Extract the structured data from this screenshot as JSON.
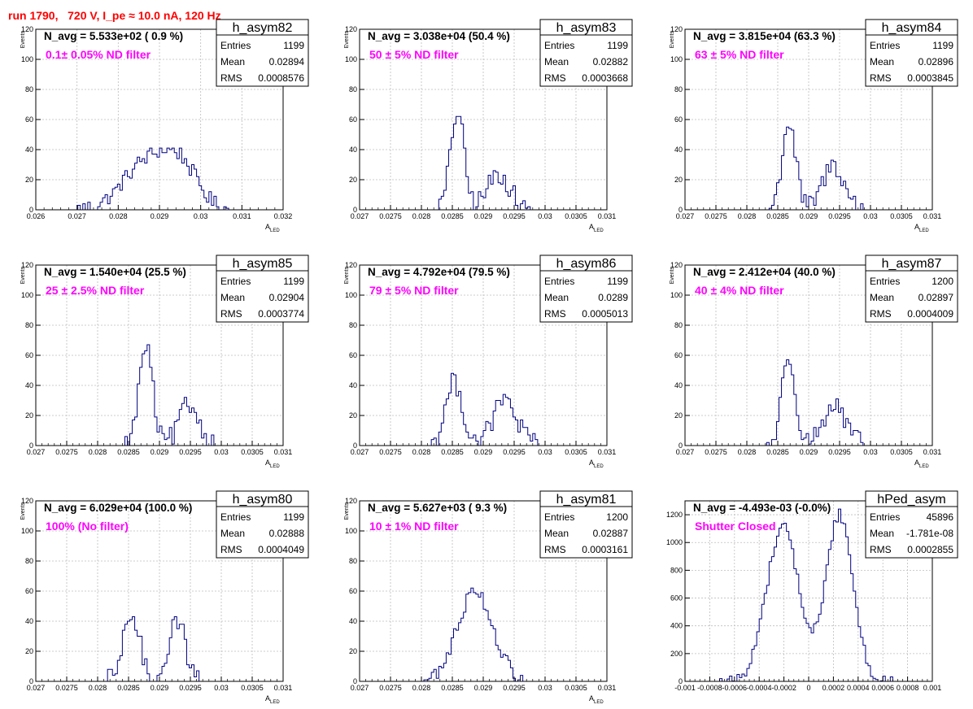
{
  "run_title": "run 1790,   720 V, I_pe ≈ 10.0 nA, 120 Hz",
  "colors": {
    "title": "#ff0000",
    "filter_label": "#ff00ff",
    "histogram": "#000080",
    "grid": "#bdbdbd"
  },
  "chart_data": [
    {
      "type": "histogram",
      "name": "h_asym82",
      "navg": "N_avg = 5.533e+02 ( 0.9 %)",
      "filter": "0.1± 0.05% ND filter",
      "ylabel": "Events",
      "xlabel": "A",
      "xlabel_sub": "LED",
      "stats": [
        [
          "Entries",
          "1199"
        ],
        [
          "Mean",
          "0.02894"
        ],
        [
          "RMS",
          "0.0008576"
        ]
      ],
      "xlim": [
        0.026,
        0.032
      ],
      "ylim": [
        0,
        120
      ],
      "xticks": [
        "0.026",
        "0.027",
        "0.028",
        "0.029",
        "0.03",
        "0.031",
        "0.032"
      ],
      "yticks": [
        "0",
        "20",
        "40",
        "60",
        "80",
        "100",
        "120"
      ],
      "grid": true,
      "bin_width": 6e-05,
      "peaks": [
        [
          0.02875,
          0.0006,
          33
        ],
        [
          0.02955,
          0.0004,
          22
        ]
      ],
      "noise": 5
    },
    {
      "type": "histogram",
      "name": "h_asym83",
      "navg": "N_avg = 3.038e+04 (50.4 %)",
      "filter": "50 ± 5% ND filter",
      "ylabel": "Events",
      "xlabel": "A",
      "xlabel_sub": "LED",
      "stats": [
        [
          "Entries",
          "1199"
        ],
        [
          "Mean",
          "0.02882"
        ],
        [
          "RMS",
          "0.0003668"
        ]
      ],
      "xlim": [
        0.027,
        0.031
      ],
      "ylim": [
        0,
        120
      ],
      "xticks": [
        "0.027",
        "0.0275",
        "0.028",
        "0.0285",
        "0.029",
        "0.0295",
        "0.03",
        "0.0305",
        "0.031"
      ],
      "yticks": [
        "0",
        "20",
        "40",
        "60",
        "80",
        "100",
        "120"
      ],
      "grid": true,
      "bin_width": 4e-05,
      "peaks": [
        [
          0.02858,
          0.00011,
          65
        ],
        [
          0.02925,
          0.00018,
          24
        ]
      ],
      "noise": 7
    },
    {
      "type": "histogram",
      "name": "h_asym84",
      "navg": "N_avg = 3.815e+04 (63.3 %)",
      "filter": "63 ± 5% ND filter",
      "ylabel": "Events",
      "xlabel": "A",
      "xlabel_sub": "LED",
      "stats": [
        [
          "Entries",
          "1199"
        ],
        [
          "Mean",
          "0.02896"
        ],
        [
          "RMS",
          "0.0003845"
        ]
      ],
      "xlim": [
        0.027,
        0.031
      ],
      "ylim": [
        0,
        120
      ],
      "xticks": [
        "0.027",
        "0.0275",
        "0.028",
        "0.0285",
        "0.029",
        "0.0295",
        "0.03",
        "0.0305",
        "0.031"
      ],
      "yticks": [
        "0",
        "20",
        "40",
        "60",
        "80",
        "100",
        "120"
      ],
      "grid": true,
      "bin_width": 4e-05,
      "peaks": [
        [
          0.02868,
          0.00011,
          58
        ],
        [
          0.0294,
          0.00017,
          30
        ]
      ],
      "noise": 7
    },
    {
      "type": "histogram",
      "name": "h_asym85",
      "navg": "N_avg = 1.540e+04 (25.5 %)",
      "filter": "25 ± 2.5% ND filter",
      "ylabel": "Events",
      "xlabel": "A",
      "xlabel_sub": "LED",
      "stats": [
        [
          "Entries",
          "1199"
        ],
        [
          "Mean",
          "0.02904"
        ],
        [
          "RMS",
          "0.0003774"
        ]
      ],
      "xlim": [
        0.027,
        0.031
      ],
      "ylim": [
        0,
        120
      ],
      "xticks": [
        "0.027",
        "0.0275",
        "0.028",
        "0.0285",
        "0.029",
        "0.0295",
        "0.03",
        "0.0305",
        "0.031"
      ],
      "yticks": [
        "0",
        "20",
        "40",
        "60",
        "80",
        "100",
        "120"
      ],
      "grid": true,
      "bin_width": 4e-05,
      "peaks": [
        [
          0.02878,
          0.00011,
          66
        ],
        [
          0.02948,
          0.00016,
          27
        ]
      ],
      "noise": 7
    },
    {
      "type": "histogram",
      "name": "h_asym86",
      "navg": "N_avg = 4.792e+04 (79.5 %)",
      "filter": "79 ± 5% ND filter",
      "ylabel": "Events",
      "xlabel": "A",
      "xlabel_sub": "LED",
      "stats": [
        [
          "Entries",
          "1199"
        ],
        [
          "Mean",
          "0.0289"
        ],
        [
          "RMS",
          "0.0005013"
        ]
      ],
      "xlim": [
        0.027,
        0.031
      ],
      "ylim": [
        0,
        120
      ],
      "xticks": [
        "0.027",
        "0.0275",
        "0.028",
        "0.0285",
        "0.029",
        "0.0295",
        "0.03",
        "0.0305",
        "0.031"
      ],
      "yticks": [
        "0",
        "20",
        "40",
        "60",
        "80",
        "100",
        "120"
      ],
      "grid": true,
      "bin_width": 4e-05,
      "peaks": [
        [
          0.02853,
          0.00014,
          42
        ],
        [
          0.02935,
          0.00019,
          30
        ]
      ],
      "noise": 7
    },
    {
      "type": "histogram",
      "name": "h_asym87",
      "navg": "N_avg = 2.412e+04 (40.0 %)",
      "filter": "40 ± 4% ND filter",
      "ylabel": "Events",
      "xlabel": "A",
      "xlabel_sub": "LED",
      "stats": [
        [
          "Entries",
          "1200"
        ],
        [
          "Mean",
          "0.02897"
        ],
        [
          "RMS",
          "0.0004009"
        ]
      ],
      "xlim": [
        0.027,
        0.031
      ],
      "ylim": [
        0,
        120
      ],
      "xticks": [
        "0.027",
        "0.0275",
        "0.028",
        "0.0285",
        "0.029",
        "0.0295",
        "0.03",
        "0.0305",
        "0.031"
      ],
      "yticks": [
        "0",
        "20",
        "40",
        "60",
        "80",
        "100",
        "120"
      ],
      "grid": true,
      "bin_width": 4e-05,
      "peaks": [
        [
          0.02868,
          0.00011,
          60
        ],
        [
          0.0294,
          0.00018,
          26
        ]
      ],
      "noise": 7
    },
    {
      "type": "histogram",
      "name": "h_asym80",
      "navg": "N_avg = 6.029e+04 (100.0 %)",
      "filter": "100% (No filter)",
      "ylabel": "Events",
      "xlabel": "A",
      "xlabel_sub": "LED",
      "stats": [
        [
          "Entries",
          "1199"
        ],
        [
          "Mean",
          "0.02888"
        ],
        [
          "RMS",
          "0.0004049"
        ]
      ],
      "xlim": [
        0.027,
        0.031
      ],
      "ylim": [
        0,
        120
      ],
      "xticks": [
        "0.027",
        "0.0275",
        "0.028",
        "0.0285",
        "0.029",
        "0.0295",
        "0.03",
        "0.0305",
        "0.031"
      ],
      "yticks": [
        "0",
        "20",
        "40",
        "60",
        "80",
        "100",
        "120"
      ],
      "grid": true,
      "bin_width": 4e-05,
      "peaks": [
        [
          0.02855,
          0.00013,
          45
        ],
        [
          0.02928,
          0.00014,
          40
        ]
      ],
      "noise": 7
    },
    {
      "type": "histogram",
      "name": "h_asym81",
      "navg": "N_avg = 5.627e+03 ( 9.3 %)",
      "filter": "10 ± 1% ND filter",
      "ylabel": "Events",
      "xlabel": "A",
      "xlabel_sub": "LED",
      "stats": [
        [
          "Entries",
          "1200"
        ],
        [
          "Mean",
          "0.02887"
        ],
        [
          "RMS",
          "0.0003161"
        ]
      ],
      "xlim": [
        0.027,
        0.031
      ],
      "ylim": [
        0,
        120
      ],
      "xticks": [
        "0.027",
        "0.0275",
        "0.028",
        "0.0285",
        "0.029",
        "0.0295",
        "0.03",
        "0.0305",
        "0.031"
      ],
      "yticks": [
        "0",
        "20",
        "40",
        "60",
        "80",
        "100",
        "120"
      ],
      "grid": true,
      "bin_width": 4e-05,
      "peaks": [
        [
          0.02887,
          0.00028,
          61
        ]
      ],
      "noise": 5
    },
    {
      "type": "histogram",
      "name": "hPed_asym",
      "navg": "N_avg = -4.493e-03 (-0.0%)",
      "filter": "Shutter Closed",
      "ylabel": "",
      "xlabel": "",
      "xlabel_sub": "",
      "stats": [
        [
          "Entries",
          "45896"
        ],
        [
          "Mean",
          "-1.781e-08"
        ],
        [
          "RMS",
          "0.0002855"
        ]
      ],
      "xlim": [
        -0.001,
        0.001
      ],
      "ylim": [
        0,
        1300
      ],
      "xticks": [
        "-0.001",
        "-0.0008",
        "-0.0006",
        "-0.0004",
        "-0.0002",
        "0",
        "0.0002",
        "0.0004",
        "0.0006",
        "0.0008",
        "0.001"
      ],
      "yticks": [
        "0",
        "200",
        "400",
        "600",
        "800",
        "1000",
        "1200"
      ],
      "grid": true,
      "bin_width": 2e-05,
      "peaks": [
        [
          -0.00021,
          0.00013,
          1120
        ],
        [
          0.00025,
          0.00011,
          1200
        ]
      ],
      "noise": 40
    }
  ]
}
